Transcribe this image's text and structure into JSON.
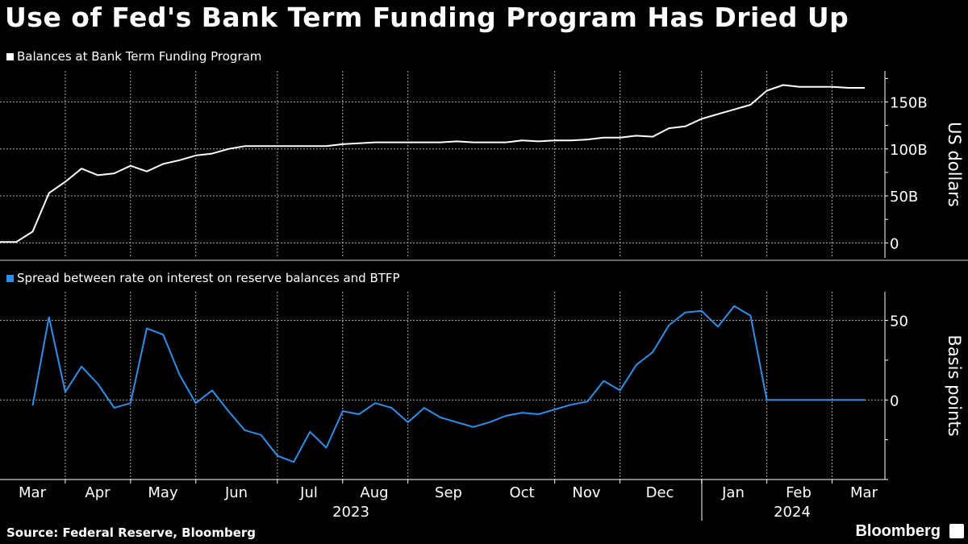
{
  "title": "Use of Fed's Bank Term Funding Program Has Dried Up",
  "source": "Source: Federal Reserve, Bloomberg",
  "brand": "Bloomberg",
  "colors": {
    "balances": "#ffffff",
    "spread": "#2d8fe6",
    "background": "#000000",
    "grid": "#aaaaaa"
  },
  "chart_data": [
    {
      "type": "line",
      "title": "Balances at Bank Term Funding Program",
      "ylabel": "US dollars",
      "ylim": [
        -16,
        183
      ],
      "yticks": [
        {
          "value": 0,
          "label": "0"
        },
        {
          "value": 50,
          "label": "50B"
        },
        {
          "value": 100,
          "label": "100B"
        },
        {
          "value": 150,
          "label": "150B"
        }
      ],
      "units": "billions USD, weekly Mar 2023 - Mar 2024",
      "grid": true,
      "series": [
        {
          "name": "Balances at Bank Term Funding Program",
          "color": "#ffffff",
          "values": [
            1,
            1,
            12,
            53,
            65,
            79,
            72,
            74,
            82,
            76,
            84,
            88,
            93,
            95,
            100,
            103,
            103,
            103,
            103,
            103,
            103,
            105,
            106,
            107,
            107,
            107,
            107,
            107,
            108,
            107,
            107,
            107,
            109,
            108,
            109,
            109,
            110,
            112,
            112,
            114,
            113,
            122,
            124,
            132,
            137,
            142,
            147,
            162,
            168,
            166,
            166,
            166,
            165,
            165
          ]
        }
      ]
    },
    {
      "type": "line",
      "title": "Spread between rate on interest on reserve balances and BTFP",
      "ylabel": "Basis points",
      "ylim": [
        -50,
        68
      ],
      "yticks": [
        {
          "value": 0,
          "label": "0"
        },
        {
          "value": 50,
          "label": "50"
        }
      ],
      "grid": true,
      "series": [
        {
          "name": "Spread between rate on interest on reserve balances and BTFP",
          "color": "#2d8fe6",
          "values": [
            null,
            null,
            -3.5,
            52,
            5,
            21,
            10,
            -5,
            -2,
            45,
            41,
            16,
            -2,
            6,
            -7,
            -19,
            -22,
            -35,
            -39,
            -20,
            -30,
            -7,
            -9,
            -2,
            -5,
            -14,
            -5,
            -11,
            -14,
            -17,
            -14,
            -10,
            -8,
            -9,
            -6,
            -3,
            -1,
            12,
            6,
            22,
            30,
            47,
            55,
            56,
            46,
            59,
            53,
            0,
            0,
            0,
            0,
            0,
            0,
            0
          ]
        }
      ]
    }
  ],
  "x_axis": {
    "months": [
      "Mar",
      "Apr",
      "May",
      "Jun",
      "Jul",
      "Aug",
      "Sep",
      "Oct",
      "Nov",
      "Dec",
      "Jan",
      "Feb",
      "Mar"
    ],
    "years": [
      "2023",
      "2024"
    ]
  }
}
